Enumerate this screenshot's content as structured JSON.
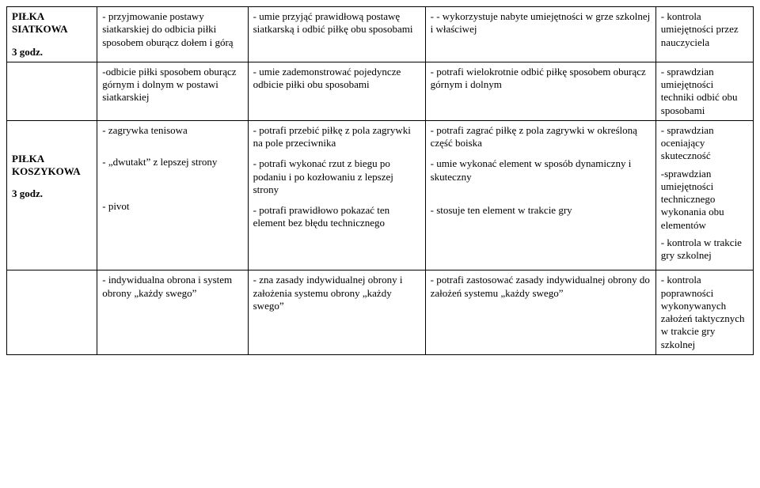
{
  "rows": [
    {
      "c0_lines": [
        "<b>PIŁKA SIATKOWA</b>",
        "",
        "<b>3 godz.</b>"
      ],
      "c1": "- przyjmowanie postawy siatkarskiej do odbicia piłki sposobem oburącz dołem i górą",
      "c2": "- umie przyjąć prawidłową postawę siatkarską i odbić piłkę obu sposobami",
      "c3": "- - wykorzystuje nabyte umiejętności w grze szkolnej i właściwej",
      "c4": "- kontrola umiejętności przez nauczyciela"
    },
    {
      "c0_lines": [],
      "c1": "-odbicie piłki sposobem oburącz górnym i dolnym w postawi siatkarskiej",
      "c2": "- umie zademonstrować pojedyncze odbicie piłki obu sposobami",
      "c3": "- potrafi wielokrotnie odbić piłkę sposobem oburącz górnym i dolnym",
      "c4": "- sprawdzian umiejętności techniki odbić obu sposobami"
    },
    {
      "c0_lines": [
        "",
        "",
        "",
        "<b>PIŁKA KOSZYKOWA</b>",
        "",
        "<b>3 godz.</b>"
      ],
      "c1_blocks": [
        "- zagrywka tenisowa",
        "- „dwutakt”  z  lepszej strony",
        "- pivot"
      ],
      "c2_blocks": [
        "- potrafi przebić piłkę z pola zagrywki na pole przeciwnika",
        "- potrafi wykonać rzut z biegu po podaniu i po kozłowaniu  z lepszej strony",
        "- potrafi prawidłowo pokazać ten element bez błędu technicznego"
      ],
      "c3_blocks": [
        "- potrafi zagrać piłkę z pola zagrywki w określoną część boiska",
        "- umie wykonać element  w sposób dynamiczny i skuteczny",
        "- stosuje ten element w trakcie gry"
      ],
      "c4_blocks": [
        "- sprawdzian oceniający skuteczność",
        "-sprawdzian umiejętności technicznego wykonania obu elementów",
        "- kontrola w trakcie gry szkolnej"
      ]
    },
    {
      "c0_lines": [],
      "c1": "- indywidualna obrona i system obrony „każdy swego”",
      "c2": "- zna zasady indywidualnej obrony i założenia systemu obrony „każdy swego”",
      "c3": "- potrafi zastosować zasady indywidualnej obrony do założeń systemu „każdy swego”",
      "c4": "- kontrola poprawności wykonywanych założeń taktycznych w trakcie gry szkolnej"
    }
  ]
}
